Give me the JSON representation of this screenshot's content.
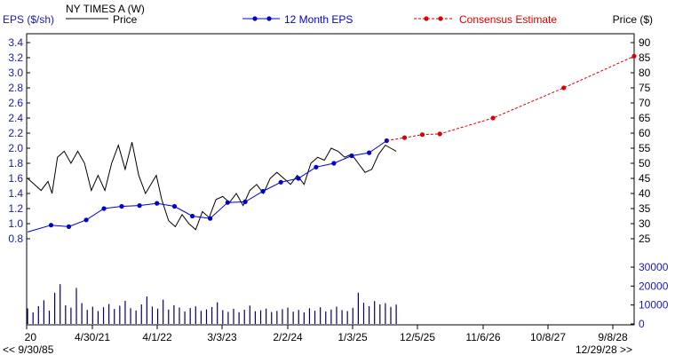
{
  "chart_data": {
    "type": "line",
    "title": "NY TIMES A (W)",
    "left_axis_label": "EPS ($/sh)",
    "right_axis_label": "Price ($)",
    "legend": [
      {
        "label": "Price",
        "color": "#000000",
        "style": "solid"
      },
      {
        "label": "12 Month EPS",
        "color": "#0000cc",
        "style": "solid-dots"
      },
      {
        "label": "Consensus Estimate",
        "color": "#dd0000",
        "style": "dashed-dots"
      }
    ],
    "x_ticks": [
      "20",
      "4/30/21",
      "4/1/22",
      "3/3/23",
      "2/2/24",
      "1/3/25",
      "12/5/25",
      "11/6/26",
      "10/8/27",
      "9/8/28"
    ],
    "x_footer_left": "<< 9/30/85",
    "x_footer_right": "12/29/28 >>",
    "x_range": [
      "2020-05-27",
      "2028-12-29"
    ],
    "eps_axis": {
      "ticks": [
        0.8,
        1.0,
        1.2,
        1.4,
        1.6,
        1.8,
        2.0,
        2.2,
        2.4,
        2.6,
        2.8,
        3.0,
        3.2,
        3.4
      ],
      "labels": [
        "0.8",
        "1.0",
        "1.2",
        "1.4",
        "1.6",
        "1.8",
        "2.0",
        "2.2",
        "2.4",
        "2.6",
        "2.8",
        "3.0",
        "3.2",
        "3.4"
      ]
    },
    "price_axis": {
      "ticks": [
        25,
        30,
        35,
        40,
        45,
        50,
        55,
        60,
        65,
        70,
        75,
        80,
        85,
        90
      ],
      "labels": [
        "25",
        "30",
        "35",
        "40",
        "45",
        "50",
        "55",
        "60",
        "65",
        "70",
        "75",
        "80",
        "85",
        "90"
      ]
    },
    "volume_axis": {
      "ticks": [
        0,
        10000,
        20000,
        30000
      ],
      "labels": [
        "0",
        "10000",
        "20000",
        "30000"
      ]
    },
    "series": [
      {
        "name": "12 Month EPS",
        "points": [
          {
            "x": "2020-06-01",
            "y": 0.89,
            "marker": false
          },
          {
            "x": "2020-09-30",
            "y": 0.98
          },
          {
            "x": "2020-12-31",
            "y": 0.96
          },
          {
            "x": "2021-03-31",
            "y": 1.05
          },
          {
            "x": "2021-06-30",
            "y": 1.2
          },
          {
            "x": "2021-09-30",
            "y": 1.23
          },
          {
            "x": "2021-12-31",
            "y": 1.24
          },
          {
            "x": "2022-03-31",
            "y": 1.27
          },
          {
            "x": "2022-06-30",
            "y": 1.23
          },
          {
            "x": "2022-09-30",
            "y": 1.1
          },
          {
            "x": "2022-12-31",
            "y": 1.07
          },
          {
            "x": "2023-03-31",
            "y": 1.28
          },
          {
            "x": "2023-06-30",
            "y": 1.29
          },
          {
            "x": "2023-09-30",
            "y": 1.43
          },
          {
            "x": "2023-12-31",
            "y": 1.55
          },
          {
            "x": "2024-03-31",
            "y": 1.6
          },
          {
            "x": "2024-06-30",
            "y": 1.75
          },
          {
            "x": "2024-09-30",
            "y": 1.8
          },
          {
            "x": "2024-12-31",
            "y": 1.9
          },
          {
            "x": "2025-03-31",
            "y": 1.94
          },
          {
            "x": "2025-06-30",
            "y": 2.1
          }
        ]
      },
      {
        "name": "Consensus Estimate",
        "points": [
          {
            "x": "2025-06-30",
            "y": 2.1,
            "marker": false
          },
          {
            "x": "2025-09-30",
            "y": 2.14
          },
          {
            "x": "2025-12-31",
            "y": 2.18
          },
          {
            "x": "2026-03-31",
            "y": 2.19
          },
          {
            "x": "2026-12-31",
            "y": 2.4
          },
          {
            "x": "2027-12-31",
            "y": 2.8
          },
          {
            "x": "2028-12-29",
            "y": 3.22
          }
        ]
      },
      {
        "name": "Price",
        "points": [
          {
            "x": "2020-06-01",
            "y": 45
          },
          {
            "x": "2020-07-06",
            "y": 43
          },
          {
            "x": "2020-08-10",
            "y": 41
          },
          {
            "x": "2020-09-14",
            "y": 44
          },
          {
            "x": "2020-10-05",
            "y": 40
          },
          {
            "x": "2020-11-02",
            "y": 52
          },
          {
            "x": "2020-12-07",
            "y": 54
          },
          {
            "x": "2021-01-11",
            "y": 50
          },
          {
            "x": "2021-02-15",
            "y": 54
          },
          {
            "x": "2021-03-22",
            "y": 50
          },
          {
            "x": "2021-04-26",
            "y": 41
          },
          {
            "x": "2021-05-31",
            "y": 46
          },
          {
            "x": "2021-07-05",
            "y": 41
          },
          {
            "x": "2021-08-09",
            "y": 50
          },
          {
            "x": "2021-09-13",
            "y": 56
          },
          {
            "x": "2021-10-18",
            "y": 48
          },
          {
            "x": "2021-11-22",
            "y": 57
          },
          {
            "x": "2021-12-27",
            "y": 46
          },
          {
            "x": "2022-01-31",
            "y": 40
          },
          {
            "x": "2022-02-28",
            "y": 43
          },
          {
            "x": "2022-03-28",
            "y": 46
          },
          {
            "x": "2022-04-25",
            "y": 38
          },
          {
            "x": "2022-05-30",
            "y": 31
          },
          {
            "x": "2022-07-04",
            "y": 29
          },
          {
            "x": "2022-08-08",
            "y": 33
          },
          {
            "x": "2022-09-12",
            "y": 30
          },
          {
            "x": "2022-10-17",
            "y": 28
          },
          {
            "x": "2022-11-21",
            "y": 34
          },
          {
            "x": "2022-12-26",
            "y": 32
          },
          {
            "x": "2023-01-30",
            "y": 38
          },
          {
            "x": "2023-03-06",
            "y": 39
          },
          {
            "x": "2023-04-10",
            "y": 37
          },
          {
            "x": "2023-05-15",
            "y": 40
          },
          {
            "x": "2023-06-19",
            "y": 36
          },
          {
            "x": "2023-07-24",
            "y": 41
          },
          {
            "x": "2023-08-28",
            "y": 43
          },
          {
            "x": "2023-10-02",
            "y": 40
          },
          {
            "x": "2023-11-06",
            "y": 45
          },
          {
            "x": "2023-12-11",
            "y": 47
          },
          {
            "x": "2024-01-15",
            "y": 45
          },
          {
            "x": "2024-02-19",
            "y": 43
          },
          {
            "x": "2024-03-25",
            "y": 46
          },
          {
            "x": "2024-04-29",
            "y": 43
          },
          {
            "x": "2024-06-03",
            "y": 50
          },
          {
            "x": "2024-07-08",
            "y": 52
          },
          {
            "x": "2024-08-12",
            "y": 51
          },
          {
            "x": "2024-09-16",
            "y": 55
          },
          {
            "x": "2024-10-21",
            "y": 54
          },
          {
            "x": "2024-11-25",
            "y": 52
          },
          {
            "x": "2024-12-30",
            "y": 53
          },
          {
            "x": "2025-02-03",
            "y": 50
          },
          {
            "x": "2025-03-10",
            "y": 47
          },
          {
            "x": "2025-04-14",
            "y": 48
          },
          {
            "x": "2025-05-19",
            "y": 53
          },
          {
            "x": "2025-06-23",
            "y": 56
          },
          {
            "x": "2025-07-21",
            "y": 55
          },
          {
            "x": "2025-08-18",
            "y": 54
          }
        ]
      },
      {
        "name": "Volume",
        "points": [
          {
            "x": "2020-06-01",
            "y": 8200
          },
          {
            "x": "2020-06-29",
            "y": 6100
          },
          {
            "x": "2020-07-27",
            "y": 9400
          },
          {
            "x": "2020-08-24",
            "y": 12500
          },
          {
            "x": "2020-09-21",
            "y": 7000
          },
          {
            "x": "2020-10-19",
            "y": 16500
          },
          {
            "x": "2020-11-16",
            "y": 21000
          },
          {
            "x": "2020-12-14",
            "y": 9800
          },
          {
            "x": "2021-01-11",
            "y": 8600
          },
          {
            "x": "2021-02-08",
            "y": 19000
          },
          {
            "x": "2021-03-08",
            "y": 11000
          },
          {
            "x": "2021-04-05",
            "y": 7400
          },
          {
            "x": "2021-05-03",
            "y": 9100
          },
          {
            "x": "2021-05-31",
            "y": 6800
          },
          {
            "x": "2021-06-28",
            "y": 8800
          },
          {
            "x": "2021-07-26",
            "y": 10500
          },
          {
            "x": "2021-08-23",
            "y": 7900
          },
          {
            "x": "2021-09-20",
            "y": 9600
          },
          {
            "x": "2021-10-18",
            "y": 12200
          },
          {
            "x": "2021-11-15",
            "y": 8300
          },
          {
            "x": "2021-12-13",
            "y": 7100
          },
          {
            "x": "2022-01-10",
            "y": 10300
          },
          {
            "x": "2022-02-07",
            "y": 14500
          },
          {
            "x": "2022-03-07",
            "y": 9200
          },
          {
            "x": "2022-04-04",
            "y": 8100
          },
          {
            "x": "2022-05-02",
            "y": 12800
          },
          {
            "x": "2022-05-30",
            "y": 7600
          },
          {
            "x": "2022-06-27",
            "y": 9900
          },
          {
            "x": "2022-07-25",
            "y": 8700
          },
          {
            "x": "2022-08-22",
            "y": 6600
          },
          {
            "x": "2022-09-19",
            "y": 8400
          },
          {
            "x": "2022-10-17",
            "y": 9300
          },
          {
            "x": "2022-11-14",
            "y": 6900
          },
          {
            "x": "2022-12-12",
            "y": 7700
          },
          {
            "x": "2023-01-09",
            "y": 8900
          },
          {
            "x": "2023-02-06",
            "y": 11400
          },
          {
            "x": "2023-03-06",
            "y": 7300
          },
          {
            "x": "2023-04-03",
            "y": 6400
          },
          {
            "x": "2023-05-01",
            "y": 8000
          },
          {
            "x": "2023-05-29",
            "y": 6200
          },
          {
            "x": "2023-06-26",
            "y": 7500
          },
          {
            "x": "2023-07-24",
            "y": 9700
          },
          {
            "x": "2023-08-21",
            "y": 6700
          },
          {
            "x": "2023-09-18",
            "y": 7200
          },
          {
            "x": "2023-10-16",
            "y": 8100
          },
          {
            "x": "2023-11-13",
            "y": 6300
          },
          {
            "x": "2023-12-11",
            "y": 6900
          },
          {
            "x": "2024-01-08",
            "y": 7800
          },
          {
            "x": "2024-02-05",
            "y": 8600
          },
          {
            "x": "2024-03-04",
            "y": 6500
          },
          {
            "x": "2024-04-01",
            "y": 7400
          },
          {
            "x": "2024-04-29",
            "y": 6100
          },
          {
            "x": "2024-05-27",
            "y": 8300
          },
          {
            "x": "2024-06-24",
            "y": 7000
          },
          {
            "x": "2024-07-22",
            "y": 8800
          },
          {
            "x": "2024-08-19",
            "y": 6600
          },
          {
            "x": "2024-09-16",
            "y": 7600
          },
          {
            "x": "2024-10-14",
            "y": 9100
          },
          {
            "x": "2024-11-11",
            "y": 7300
          },
          {
            "x": "2024-12-09",
            "y": 6800
          },
          {
            "x": "2025-01-06",
            "y": 8500
          },
          {
            "x": "2025-02-03",
            "y": 16500
          },
          {
            "x": "2025-03-03",
            "y": 11200
          },
          {
            "x": "2025-03-31",
            "y": 9400
          },
          {
            "x": "2025-04-28",
            "y": 12100
          },
          {
            "x": "2025-05-26",
            "y": 10300
          },
          {
            "x": "2025-06-23",
            "y": 11000
          },
          {
            "x": "2025-07-21",
            "y": 9000
          },
          {
            "x": "2025-08-18",
            "y": 10200
          }
        ]
      }
    ]
  }
}
